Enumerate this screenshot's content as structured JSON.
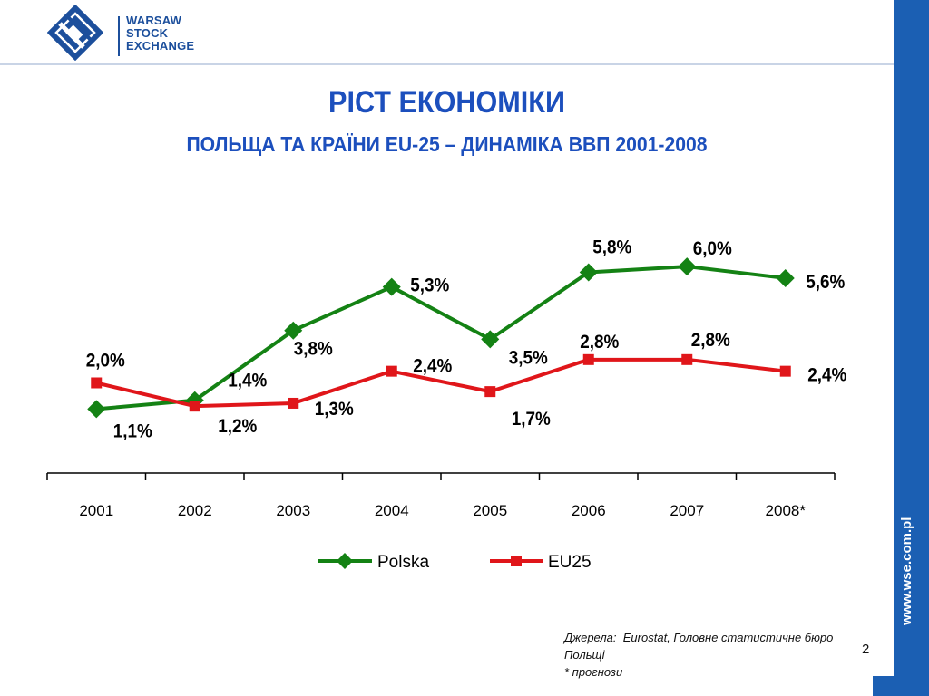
{
  "logo": {
    "line1": "WARSAW",
    "line2": "STOCK",
    "line3": "EXCHANGE"
  },
  "sidebar": {
    "url": "www.wse.com.pl"
  },
  "title": "РІСТ ЕКОНОМІКИ",
  "subtitle": "ПОЛЬЩА ТА КРАЇНИ EU-25 – ДИНАМІКА ВВП 2001-2008",
  "chart_data": {
    "type": "line",
    "categories": [
      "2001",
      "2002",
      "2003",
      "2004",
      "2005",
      "2006",
      "2007",
      "2008*"
    ],
    "series": [
      {
        "name": "Polska",
        "color": "#148214",
        "marker": "diamond",
        "values": [
          1.1,
          1.4,
          3.8,
          5.3,
          3.5,
          5.8,
          6.0,
          5.6
        ],
        "labels": [
          "1,1%",
          "1,4%",
          "3,8%",
          "5,3%",
          "3,5%",
          "5,8%",
          "6,0%",
          "5,6%"
        ]
      },
      {
        "name": "EU25",
        "color": "#e0161a",
        "marker": "square",
        "values": [
          2.0,
          1.2,
          1.3,
          2.4,
          1.7,
          2.8,
          2.8,
          2.4
        ],
        "labels": [
          "2,0%",
          "1,2%",
          "1,3%",
          "2,4%",
          "1,7%",
          "2,8%",
          "2,8%",
          "2,4%"
        ]
      }
    ],
    "ylim": [
      -1.1,
      7.0
    ],
    "grid": false,
    "legend_position": "bottom"
  },
  "source": {
    "label": "Джерела",
    "text": "Eurostat, Головне статистичне бюро Польщі",
    "note": "* прогнози"
  },
  "page_number": "2"
}
